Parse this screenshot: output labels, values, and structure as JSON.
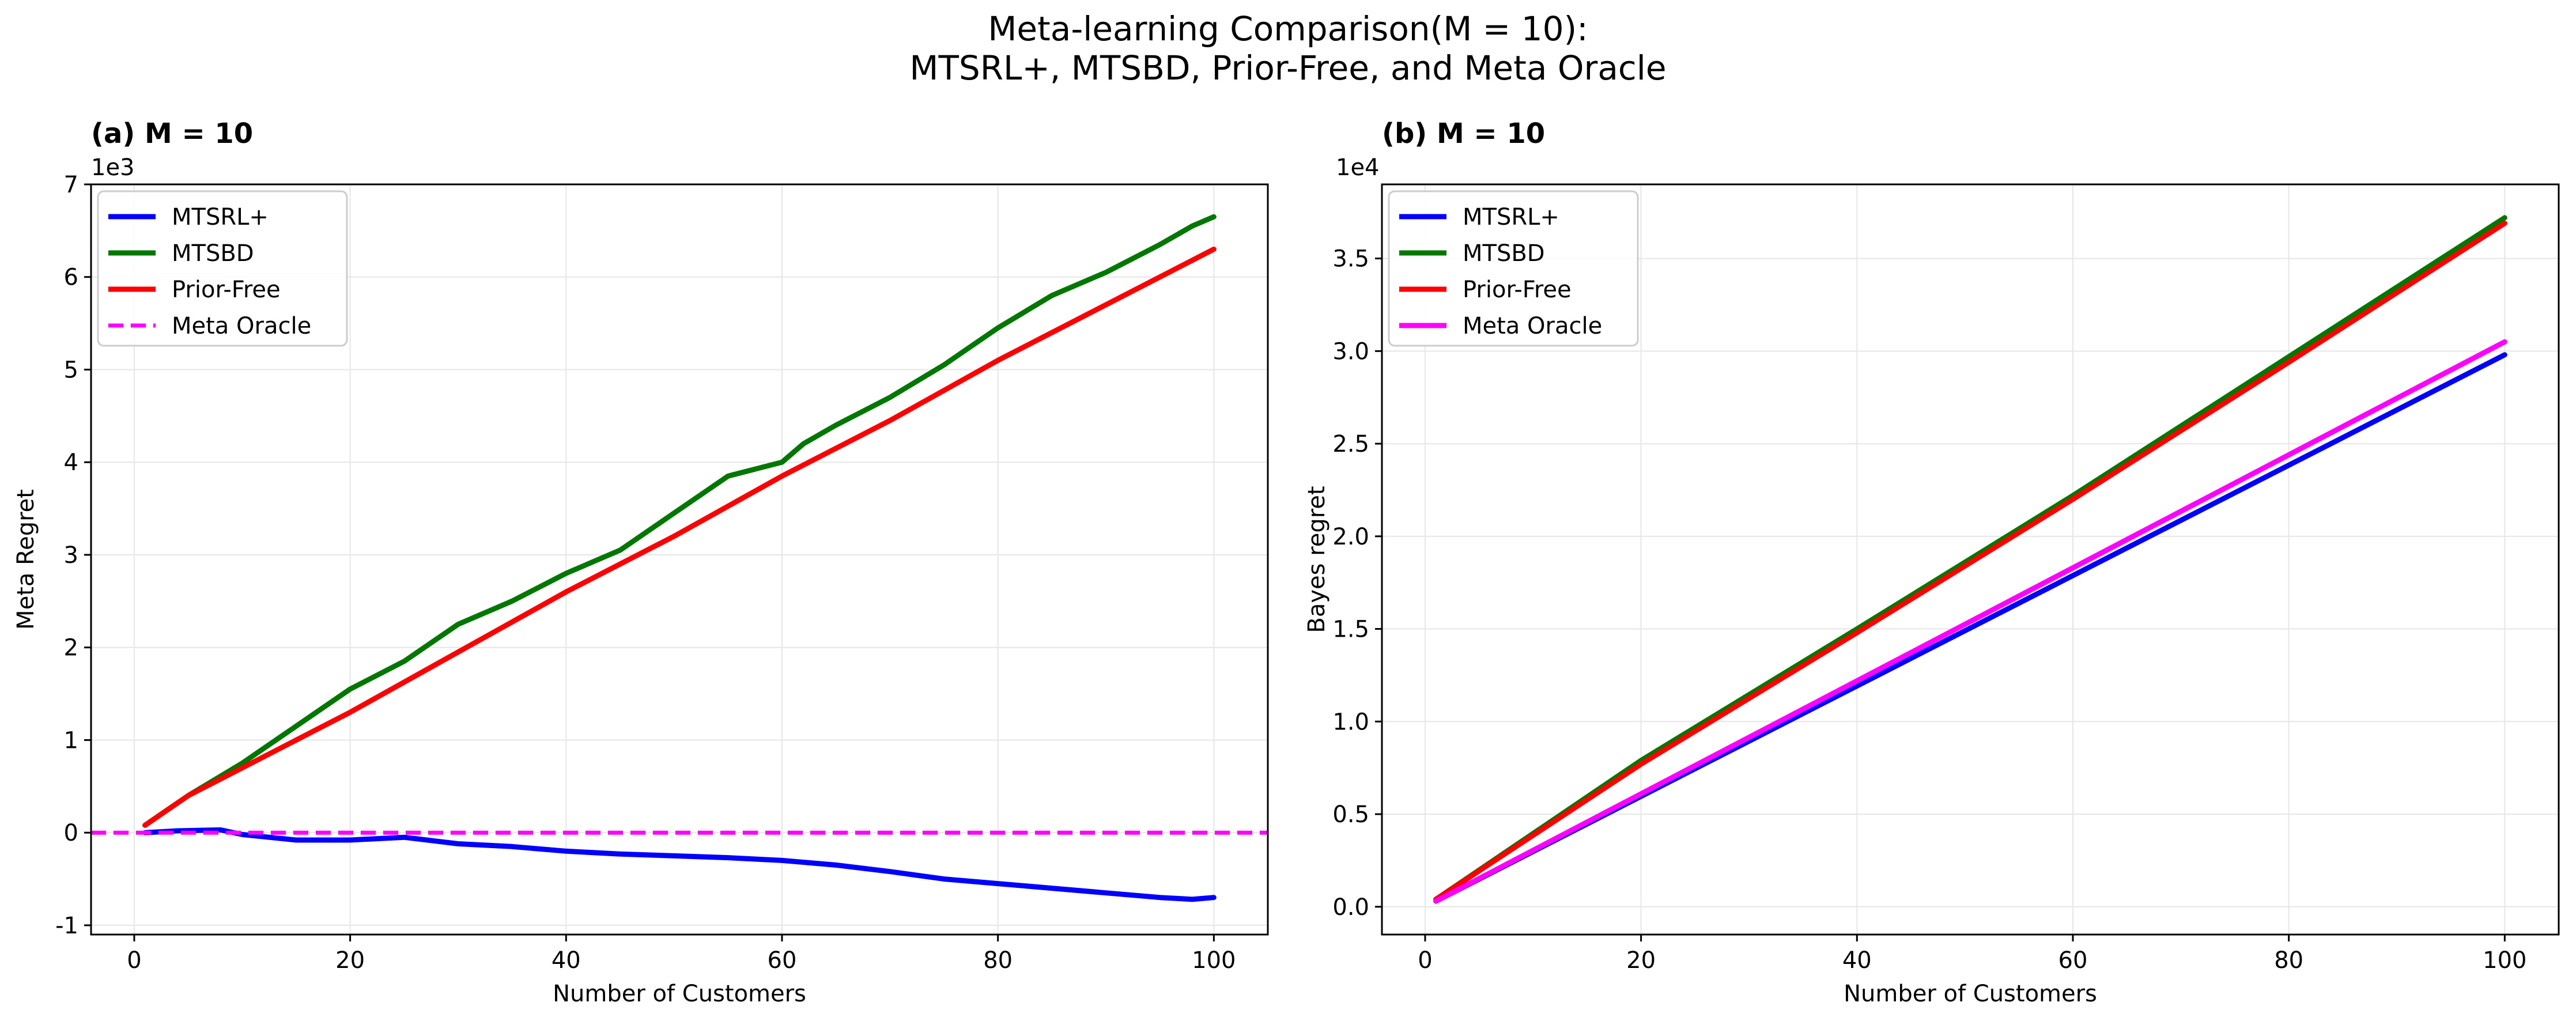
{
  "figure": {
    "suptitle_line1": "Meta-learning Comparison(M = 10):",
    "suptitle_line2": "MTSRL+, MTSBD, Prior-Free, and Meta Oracle"
  },
  "colors": {
    "MTSRL+": "#0000ff",
    "MTSBD": "#007800",
    "Prior-Free": "#ff0000",
    "Meta Oracle": "#ff00ff"
  },
  "chart_data": [
    {
      "type": "line",
      "title": "(a) M = 10",
      "xlabel": "Number of Customers",
      "ylabel": "Meta Regret",
      "y_offset_label": "1e3",
      "xlim": [
        -4,
        105
      ],
      "ylim": [
        -1.1,
        7
      ],
      "xticks": [
        0,
        20,
        40,
        60,
        80,
        100
      ],
      "xtick_labels": [
        "0",
        "20",
        "40",
        "60",
        "80",
        "100"
      ],
      "yticks": [
        -1,
        0,
        1,
        2,
        3,
        4,
        5,
        6,
        7
      ],
      "ytick_labels": [
        "-1",
        "0",
        "1",
        "2",
        "3",
        "4",
        "5",
        "6",
        "7"
      ],
      "grid": true,
      "legend_position": "upper-left",
      "series": [
        {
          "name": "MTSRL+",
          "style": "solid",
          "x": [
            1,
            4,
            8,
            10,
            15,
            20,
            25,
            30,
            35,
            40,
            45,
            50,
            55,
            60,
            65,
            70,
            75,
            80,
            85,
            90,
            95,
            98,
            100
          ],
          "y": [
            0.0,
            0.02,
            0.03,
            -0.02,
            -0.08,
            -0.08,
            -0.05,
            -0.12,
            -0.15,
            -0.2,
            -0.23,
            -0.25,
            -0.27,
            -0.3,
            -0.35,
            -0.42,
            -0.5,
            -0.55,
            -0.6,
            -0.65,
            -0.7,
            -0.72,
            -0.7
          ]
        },
        {
          "name": "MTSBD",
          "style": "solid",
          "x": [
            1,
            5,
            10,
            15,
            20,
            25,
            30,
            35,
            40,
            45,
            50,
            55,
            60,
            62,
            65,
            70,
            75,
            80,
            85,
            90,
            95,
            98,
            100
          ],
          "y": [
            0.08,
            0.4,
            0.75,
            1.15,
            1.55,
            1.85,
            2.25,
            2.5,
            2.8,
            3.05,
            3.45,
            3.85,
            4.0,
            4.2,
            4.4,
            4.7,
            5.05,
            5.45,
            5.8,
            6.05,
            6.35,
            6.55,
            6.65
          ]
        },
        {
          "name": "Prior-Free",
          "style": "solid",
          "x": [
            1,
            5,
            10,
            20,
            30,
            40,
            50,
            60,
            70,
            80,
            90,
            100
          ],
          "y": [
            0.08,
            0.4,
            0.7,
            1.3,
            1.95,
            2.6,
            3.2,
            3.85,
            4.45,
            5.1,
            5.7,
            6.3
          ]
        },
        {
          "name": "Meta Oracle",
          "style": "dashed",
          "x": [
            -4,
            105
          ],
          "y": [
            0,
            0
          ]
        }
      ]
    },
    {
      "type": "line",
      "title": "(b) M = 10",
      "xlabel": "Number of Customers",
      "ylabel": "Bayes regret",
      "y_offset_label": "1e4",
      "xlim": [
        -4,
        105
      ],
      "ylim": [
        -0.15,
        3.9
      ],
      "xticks": [
        0,
        20,
        40,
        60,
        80,
        100
      ],
      "xtick_labels": [
        "0",
        "20",
        "40",
        "60",
        "80",
        "100"
      ],
      "yticks": [
        0.0,
        0.5,
        1.0,
        1.5,
        2.0,
        2.5,
        3.0,
        3.5
      ],
      "ytick_labels": [
        "0.0",
        "0.5",
        "1.0",
        "1.5",
        "2.0",
        "2.5",
        "3.0",
        "3.5"
      ],
      "grid": true,
      "legend_position": "upper-left",
      "series": [
        {
          "name": "MTSRL+",
          "style": "solid",
          "x": [
            1,
            100
          ],
          "y": [
            0.03,
            2.98
          ]
        },
        {
          "name": "MTSBD",
          "style": "solid",
          "x": [
            1,
            20,
            40,
            60,
            80,
            100
          ],
          "y": [
            0.04,
            0.79,
            1.5,
            2.22,
            2.97,
            3.72
          ]
        },
        {
          "name": "Prior-Free",
          "style": "solid",
          "x": [
            1,
            20,
            40,
            60,
            80,
            100
          ],
          "y": [
            0.04,
            0.77,
            1.48,
            2.2,
            2.94,
            3.69
          ]
        },
        {
          "name": "Meta Oracle",
          "style": "solid",
          "x": [
            1,
            100
          ],
          "y": [
            0.03,
            3.05
          ]
        }
      ]
    }
  ]
}
